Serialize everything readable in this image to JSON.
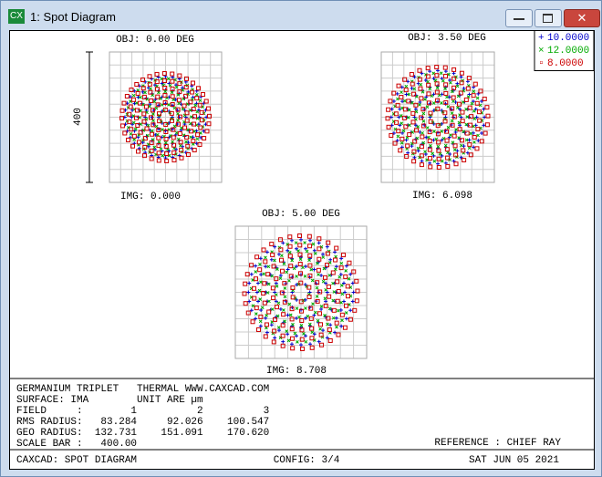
{
  "window": {
    "title": "1: Spot Diagram",
    "icon": "CX"
  },
  "legend": [
    {
      "label": "10.0000",
      "color": "#0000cc"
    },
    {
      "label": "12.0000",
      "color": "#00aa00"
    },
    {
      "label": "8.0000",
      "color": "#cc0000"
    }
  ],
  "scale_bar_label": "400",
  "plots": [
    {
      "obj": "OBJ: 0.00 DEG",
      "img": "IMG: 0.000"
    },
    {
      "obj": "OBJ: 3.50 DEG",
      "img": "IMG: 6.098"
    },
    {
      "obj": "OBJ: 5.00 DEG",
      "img": "IMG: 8.708"
    }
  ],
  "info": {
    "lines": [
      "GERMANIUM TRIPLET   THERMAL WWW.CAXCAD.COM",
      "SURFACE: IMA        UNIT ARE µm",
      "FIELD     :        1          2          3",
      "RMS RADIUS:   83.284     92.026    100.547",
      "GEO RADIUS:  132.731    151.091    170.620",
      "SCALE BAR :   400.00"
    ],
    "reference": "REFERENCE : CHIEF RAY"
  },
  "footer": {
    "left": "CAXCAD: SPOT DIAGRAM",
    "center": "CONFIG: 3/4",
    "right": "SAT JUN 05 2021"
  }
}
